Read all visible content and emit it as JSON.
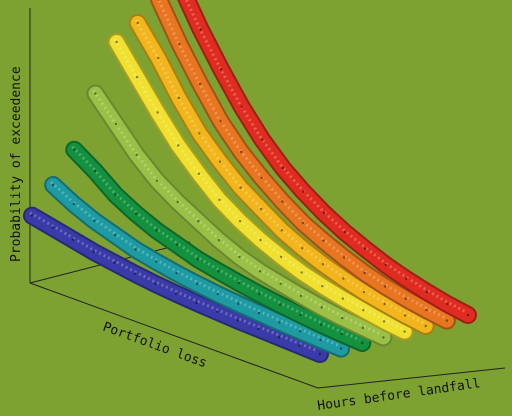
{
  "chart_data": {
    "type": "line",
    "title": "",
    "xlabel": "Portfolio loss",
    "ylabel": "Probability of exceedence",
    "zlabel": "Hours before landfall",
    "grid": false,
    "legend": "none",
    "background": "#7da232",
    "series": [
      {
        "color": "#3a3aa8",
        "values": [
          0.16,
          0.14,
          0.12,
          0.1,
          0.085,
          0.07,
          0.058,
          0.048,
          0.04,
          0.034,
          0.028,
          0.024,
          0.02,
          0.016,
          0.012
        ]
      },
      {
        "color": "#1e9aa2",
        "values": [
          0.27,
          0.22,
          0.18,
          0.15,
          0.12,
          0.1,
          0.082,
          0.068,
          0.056,
          0.046,
          0.038,
          0.03,
          0.024,
          0.018,
          0.013
        ]
      },
      {
        "color": "#13913f",
        "values": [
          0.4,
          0.34,
          0.27,
          0.22,
          0.18,
          0.15,
          0.12,
          0.1,
          0.082,
          0.066,
          0.052,
          0.04,
          0.03,
          0.022,
          0.015
        ]
      },
      {
        "color": "#9ac046",
        "values": [
          0.62,
          0.52,
          0.42,
          0.34,
          0.28,
          0.23,
          0.18,
          0.14,
          0.11,
          0.088,
          0.068,
          0.05,
          0.036,
          0.026,
          0.017
        ]
      },
      {
        "color": "#f0e030",
        "values": [
          0.82,
          0.7,
          0.58,
          0.47,
          0.38,
          0.3,
          0.24,
          0.19,
          0.15,
          0.115,
          0.088,
          0.066,
          0.048,
          0.032,
          0.02
        ]
      },
      {
        "color": "#f2b61c",
        "values": [
          0.88,
          0.76,
          0.62,
          0.5,
          0.41,
          0.33,
          0.27,
          0.21,
          0.165,
          0.128,
          0.098,
          0.072,
          0.052,
          0.035,
          0.022
        ]
      },
      {
        "color": "#e87520",
        "values": [
          0.96,
          0.8,
          0.66,
          0.53,
          0.43,
          0.35,
          0.28,
          0.22,
          0.175,
          0.135,
          0.1,
          0.074,
          0.053,
          0.036,
          0.023
        ]
      },
      {
        "color": "#e02c20",
        "values": [
          1.0,
          0.84,
          0.7,
          0.57,
          0.46,
          0.37,
          0.3,
          0.24,
          0.19,
          0.15,
          0.113,
          0.084,
          0.06,
          0.04,
          0.025
        ]
      }
    ]
  }
}
